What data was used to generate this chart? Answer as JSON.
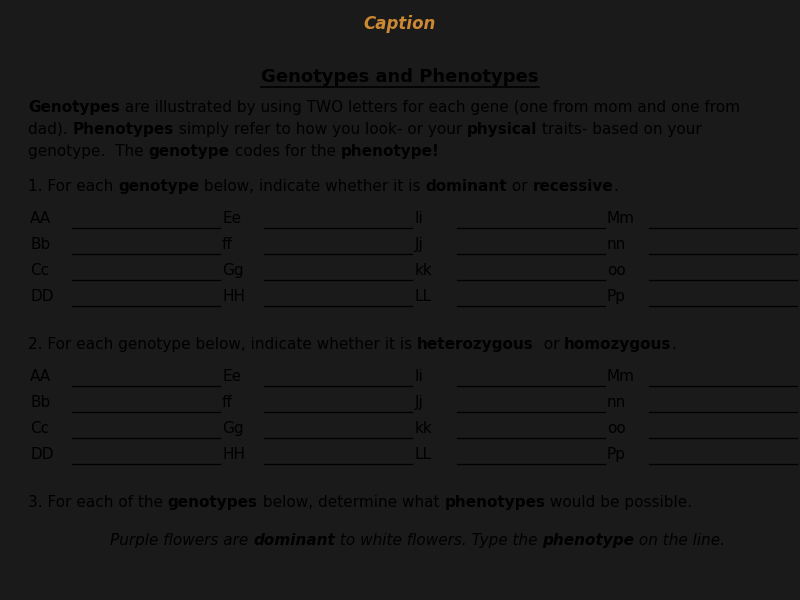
{
  "title": "Genotypes and Phenotypes",
  "top_bar_color": "#4455aa",
  "top_bar_text": "Caption",
  "content_bg": "#c8c8c8",
  "dark_bg": "#1a1a1a",
  "genotypes_col1": [
    "AA",
    "Bb",
    "Cc",
    "DD"
  ],
  "genotypes_col2": [
    "Ee",
    "ff",
    "Gg",
    "HH"
  ],
  "genotypes_col3": [
    "Ii",
    "Jj",
    "kk",
    "LL"
  ],
  "genotypes_col4": [
    "Mm",
    "nn",
    "oo",
    "Pp"
  ],
  "font_size": 11,
  "font_family": "DejaVu Sans"
}
